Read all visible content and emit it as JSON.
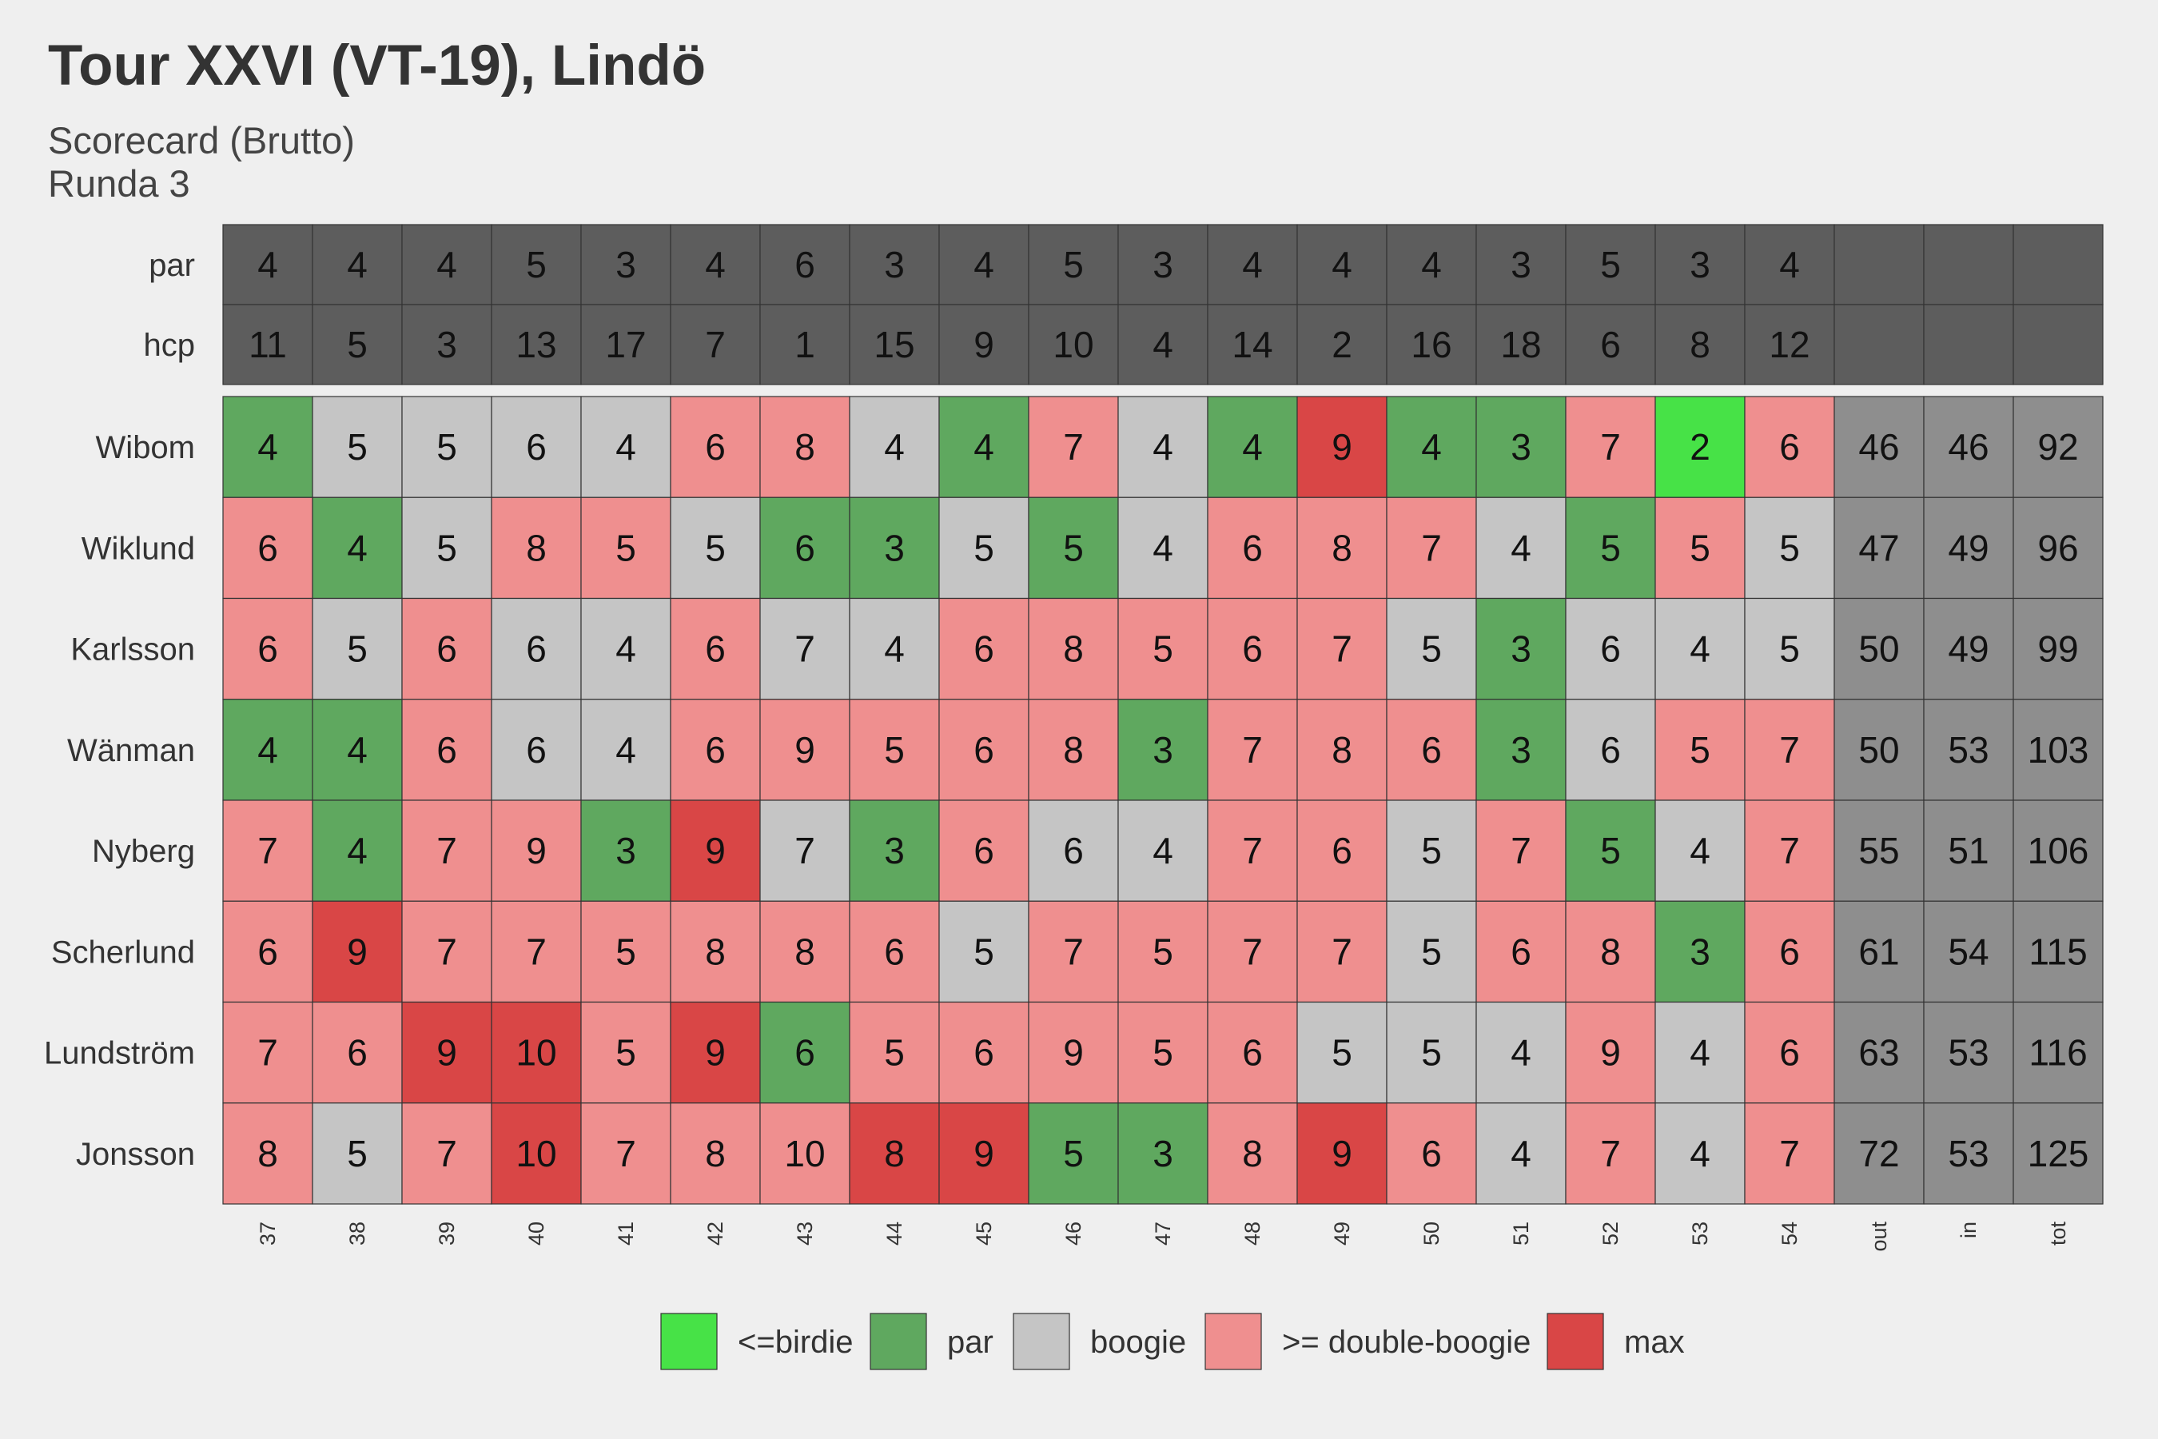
{
  "title": "Tour XXVI (VT-19), Lindö",
  "subtitle": "Scorecard (Brutto)",
  "subtitle2": "Runda 3",
  "chart_data": {
    "type": "heatmap",
    "holes": [
      "37",
      "38",
      "39",
      "40",
      "41",
      "42",
      "43",
      "44",
      "45",
      "46",
      "47",
      "48",
      "49",
      "50",
      "51",
      "52",
      "53",
      "54"
    ],
    "summary_columns": [
      "out",
      "in",
      "tot"
    ],
    "info_rows": [
      {
        "label": "par",
        "values": [
          4,
          4,
          4,
          5,
          3,
          4,
          6,
          3,
          4,
          5,
          3,
          4,
          4,
          4,
          3,
          5,
          3,
          4
        ]
      },
      {
        "label": "hcp",
        "values": [
          11,
          5,
          3,
          13,
          17,
          7,
          1,
          15,
          9,
          10,
          4,
          14,
          2,
          16,
          18,
          6,
          8,
          12
        ]
      }
    ],
    "players": [
      {
        "name": "Wibom",
        "scores": [
          4,
          5,
          5,
          6,
          4,
          6,
          8,
          4,
          4,
          7,
          4,
          4,
          9,
          4,
          3,
          7,
          2,
          6
        ],
        "categories": [
          "par",
          "boogie",
          "boogie",
          "boogie",
          "boogie",
          "dbl",
          "dbl",
          "boogie",
          "par",
          "dbl",
          "boogie",
          "par",
          "max",
          "par",
          "par",
          "dbl",
          "birdie",
          "dbl"
        ],
        "out": 46,
        "in": 46,
        "tot": 92
      },
      {
        "name": "Wiklund",
        "scores": [
          6,
          4,
          5,
          8,
          5,
          5,
          6,
          3,
          5,
          5,
          4,
          6,
          8,
          7,
          4,
          5,
          5,
          5
        ],
        "categories": [
          "dbl",
          "par",
          "boogie",
          "dbl",
          "dbl",
          "boogie",
          "par",
          "par",
          "boogie",
          "par",
          "boogie",
          "dbl",
          "dbl",
          "dbl",
          "boogie",
          "par",
          "dbl",
          "boogie"
        ],
        "out": 47,
        "in": 49,
        "tot": 96
      },
      {
        "name": "Karlsson",
        "scores": [
          6,
          5,
          6,
          6,
          4,
          6,
          7,
          4,
          6,
          8,
          5,
          6,
          7,
          5,
          3,
          6,
          4,
          5
        ],
        "categories": [
          "dbl",
          "boogie",
          "dbl",
          "boogie",
          "boogie",
          "dbl",
          "boogie",
          "boogie",
          "dbl",
          "dbl",
          "dbl",
          "dbl",
          "dbl",
          "boogie",
          "par",
          "boogie",
          "boogie",
          "boogie"
        ],
        "out": 50,
        "in": 49,
        "tot": 99
      },
      {
        "name": "Wänman",
        "scores": [
          4,
          4,
          6,
          6,
          4,
          6,
          9,
          5,
          6,
          8,
          3,
          7,
          8,
          6,
          3,
          6,
          5,
          7
        ],
        "categories": [
          "par",
          "par",
          "dbl",
          "boogie",
          "boogie",
          "dbl",
          "dbl",
          "dbl",
          "dbl",
          "dbl",
          "par",
          "dbl",
          "dbl",
          "dbl",
          "par",
          "boogie",
          "dbl",
          "dbl"
        ],
        "out": 50,
        "in": 53,
        "tot": 103
      },
      {
        "name": "Nyberg",
        "scores": [
          7,
          4,
          7,
          9,
          3,
          9,
          7,
          3,
          6,
          6,
          4,
          7,
          6,
          5,
          7,
          5,
          4,
          7
        ],
        "categories": [
          "dbl",
          "par",
          "dbl",
          "dbl",
          "par",
          "max",
          "boogie",
          "par",
          "dbl",
          "boogie",
          "boogie",
          "dbl",
          "dbl",
          "boogie",
          "dbl",
          "par",
          "boogie",
          "dbl"
        ],
        "out": 55,
        "in": 51,
        "tot": 106
      },
      {
        "name": "Scherlund",
        "scores": [
          6,
          9,
          7,
          7,
          5,
          8,
          8,
          6,
          5,
          7,
          5,
          7,
          7,
          5,
          6,
          8,
          3,
          6
        ],
        "categories": [
          "dbl",
          "max",
          "dbl",
          "dbl",
          "dbl",
          "dbl",
          "dbl",
          "dbl",
          "boogie",
          "dbl",
          "dbl",
          "dbl",
          "dbl",
          "boogie",
          "dbl",
          "dbl",
          "par",
          "dbl"
        ],
        "out": 61,
        "in": 54,
        "tot": 115
      },
      {
        "name": "Lundström",
        "scores": [
          7,
          6,
          9,
          10,
          5,
          9,
          6,
          5,
          6,
          9,
          5,
          6,
          5,
          5,
          4,
          9,
          4,
          6
        ],
        "categories": [
          "dbl",
          "dbl",
          "max",
          "max",
          "dbl",
          "max",
          "par",
          "dbl",
          "dbl",
          "dbl",
          "dbl",
          "dbl",
          "boogie",
          "boogie",
          "boogie",
          "dbl",
          "boogie",
          "dbl"
        ],
        "out": 63,
        "in": 53,
        "tot": 116
      },
      {
        "name": "Jonsson",
        "scores": [
          8,
          5,
          7,
          10,
          7,
          8,
          10,
          8,
          9,
          5,
          3,
          8,
          9,
          6,
          4,
          7,
          4,
          7
        ],
        "categories": [
          "dbl",
          "boogie",
          "dbl",
          "max",
          "dbl",
          "dbl",
          "dbl",
          "max",
          "max",
          "par",
          "par",
          "dbl",
          "max",
          "dbl",
          "boogie",
          "dbl",
          "boogie",
          "dbl"
        ],
        "out": 72,
        "in": 53,
        "tot": 125
      }
    ],
    "legend": [
      {
        "key": "birdie",
        "label": "<=birdie",
        "color": "#47e247"
      },
      {
        "key": "par",
        "label": "par",
        "color": "#5fa85f"
      },
      {
        "key": "boogie",
        "label": "boogie",
        "color": "#c5c5c5"
      },
      {
        "key": "dbl",
        "label": ">= double-boogie",
        "color": "#ef8f8f"
      },
      {
        "key": "max",
        "label": "max",
        "color": "#d94646"
      }
    ],
    "info_color": "#5d5d5d",
    "summary_color": "#8e8e8e",
    "legend_placement": "bottom"
  }
}
